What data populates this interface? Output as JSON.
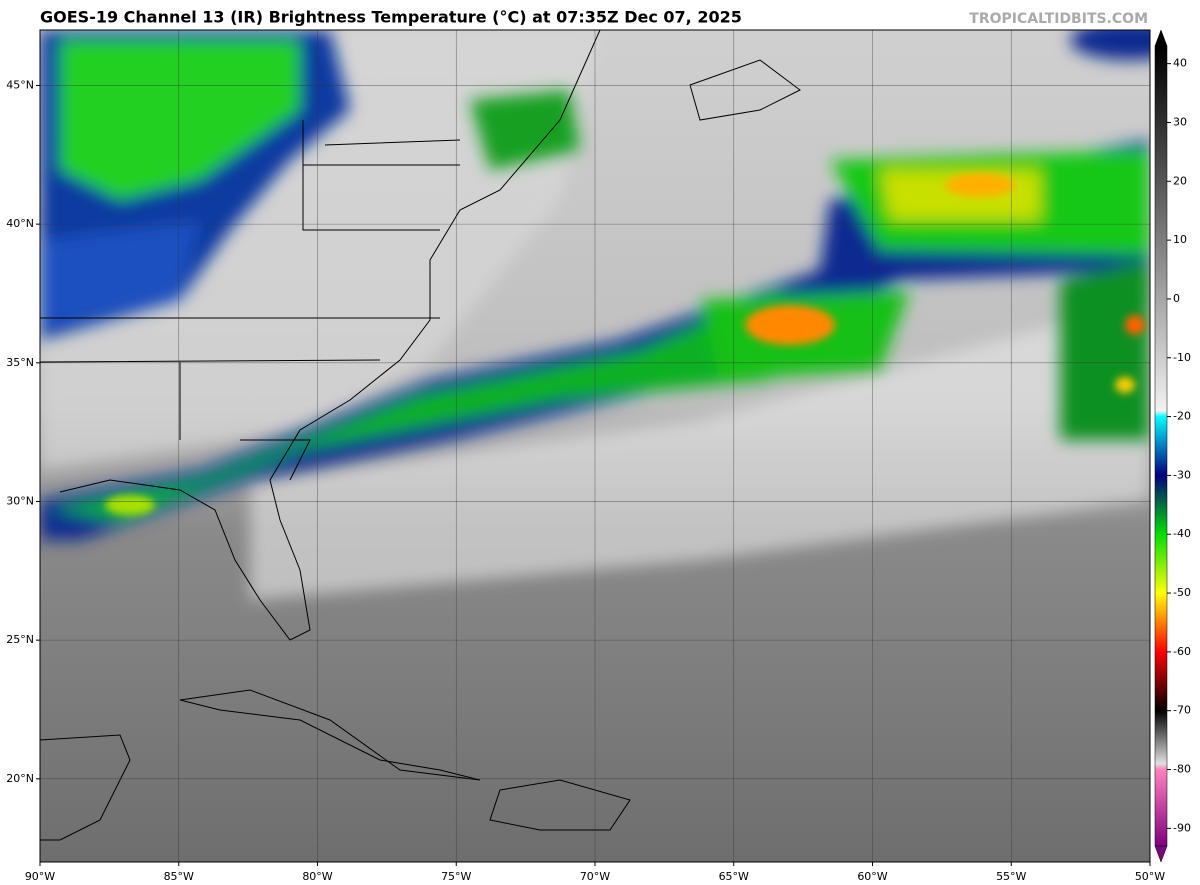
{
  "map": {
    "title": "GOES-19 Channel 13 (IR) Brightness Temperature (°C) at 07:35Z Dec 07, 2025",
    "credit": "TROPICALTIDBITS.COM",
    "xlim": [
      -90,
      -50
    ],
    "ylim": [
      17,
      47
    ],
    "xticks": [
      {
        "value": -90,
        "label": "90°W"
      },
      {
        "value": -85,
        "label": "85°W"
      },
      {
        "value": -80,
        "label": "80°W"
      },
      {
        "value": -75,
        "label": "75°W"
      },
      {
        "value": -70,
        "label": "70°W"
      },
      {
        "value": -65,
        "label": "65°W"
      },
      {
        "value": -60,
        "label": "60°W"
      },
      {
        "value": -55,
        "label": "55°W"
      },
      {
        "value": -50,
        "label": "50°W"
      }
    ],
    "yticks": [
      {
        "value": 20,
        "label": "20°N"
      },
      {
        "value": 25,
        "label": "25°N"
      },
      {
        "value": 30,
        "label": "30°N"
      },
      {
        "value": 35,
        "label": "35°N"
      },
      {
        "value": 40,
        "label": "40°N"
      },
      {
        "value": 45,
        "label": "45°N"
      }
    ],
    "grid": true,
    "colorbar": {
      "lim": [
        -93,
        43
      ],
      "ticks": [
        40,
        30,
        20,
        10,
        0,
        -10,
        -20,
        -30,
        -40,
        -50,
        -60,
        -70,
        -80,
        -90
      ],
      "stops": [
        {
          "value": 43,
          "color": "#000000"
        },
        {
          "value": 20,
          "color": "#555555"
        },
        {
          "value": -19,
          "color": "#f2f2f2"
        },
        {
          "value": -20,
          "color": "#00ffff"
        },
        {
          "value": -30,
          "color": "#000080"
        },
        {
          "value": -40,
          "color": "#00e000"
        },
        {
          "value": -50,
          "color": "#ffff00"
        },
        {
          "value": -60,
          "color": "#ff0000"
        },
        {
          "value": -70,
          "color": "#000000"
        },
        {
          "value": -79,
          "color": "#e0e0e0"
        },
        {
          "value": -80,
          "color": "#ff80c0"
        },
        {
          "value": -93,
          "color": "#800080"
        }
      ]
    }
  }
}
